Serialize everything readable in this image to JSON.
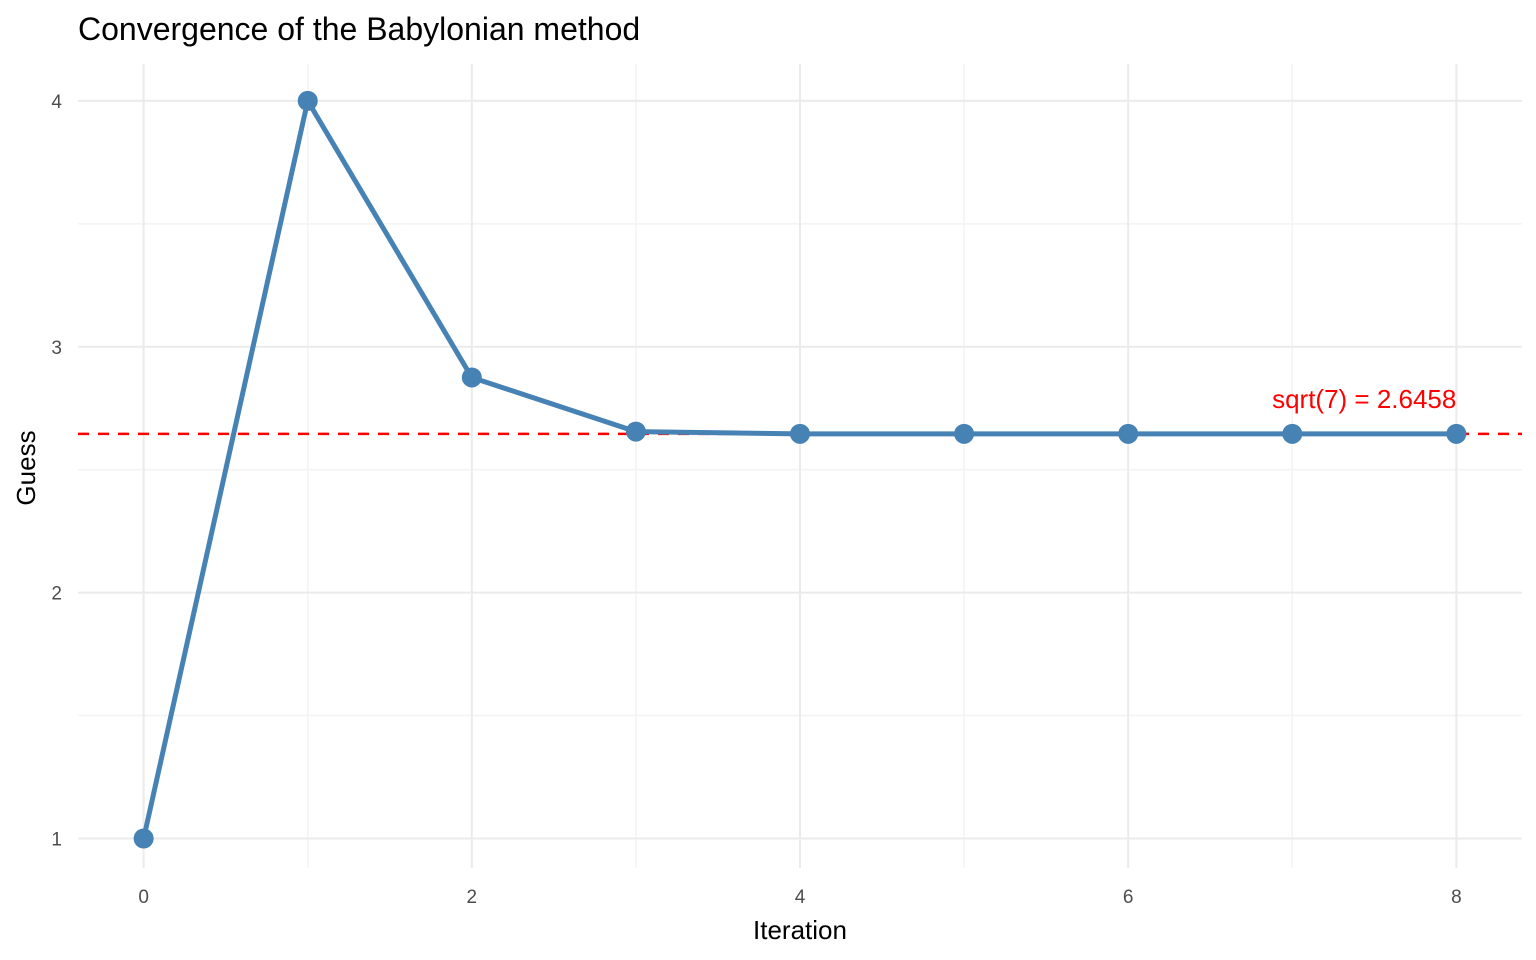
{
  "chart_data": {
    "type": "line",
    "title": "Convergence of the Babylonian method",
    "xlabel": "Iteration",
    "ylabel": "Guess",
    "x": [
      0,
      1,
      2,
      3,
      4,
      5,
      6,
      7,
      8
    ],
    "series": [
      {
        "values": [
          1,
          4,
          2.875,
          2.6549,
          2.6458,
          2.6458,
          2.6458,
          2.6458,
          2.6458
        ],
        "color": "#4682b4",
        "markers": true
      }
    ],
    "xlim": [
      -0.4,
      8.4
    ],
    "ylim": [
      0.88,
      4.15
    ],
    "xticks": [
      0,
      2,
      4,
      6,
      8
    ],
    "xtick_labels": [
      "0",
      "2",
      "4",
      "6",
      "8"
    ],
    "x_minor_ticks": [
      1,
      3,
      5,
      7
    ],
    "yticks": [
      1,
      2,
      3,
      4
    ],
    "ytick_labels": [
      "1",
      "2",
      "3",
      "4"
    ],
    "y_minor_ticks": [
      1.5,
      2.5,
      3.5
    ],
    "grid": true,
    "reference_line": {
      "y": 2.6458,
      "style": "dashed",
      "color": "#ff0000"
    },
    "annotations": [
      {
        "text": "sqrt(7) = 2.6458",
        "x": 8,
        "y": 2.6458,
        "color": "#ff0000",
        "anchor": "end"
      }
    ]
  }
}
